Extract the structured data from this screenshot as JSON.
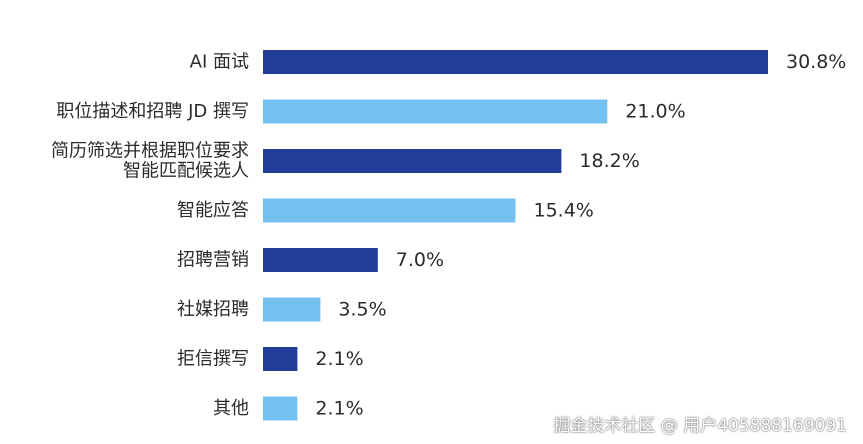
{
  "chart_data": {
    "type": "bar",
    "orientation": "horizontal",
    "categories": [
      [
        "AI 面试"
      ],
      [
        "职位描述和招聘 JD 撰写"
      ],
      [
        "简历筛选并根据职位要求",
        "智能匹配候选人"
      ],
      [
        "智能应答"
      ],
      [
        "招聘营销"
      ],
      [
        "社媒招聘"
      ],
      [
        "拒信撰写"
      ],
      [
        "其他"
      ]
    ],
    "values": [
      30.8,
      21.0,
      18.2,
      15.4,
      7.0,
      3.5,
      2.1,
      2.1
    ],
    "value_labels": [
      "30.8%",
      "21.0%",
      "18.2%",
      "15.4%",
      "7.0%",
      "3.5%",
      "2.1%",
      "2.1%"
    ],
    "unit": "%",
    "xlim": [
      0,
      30.8
    ],
    "grid": false,
    "legend": "none",
    "bar_colors": [
      "#213f99",
      "#74c0ee",
      "#213f99",
      "#74c0ee",
      "#213f99",
      "#74c0ee",
      "#213f99",
      "#74c0ee"
    ]
  },
  "watermark": "掘金技术社区 @ 用户405888169091"
}
